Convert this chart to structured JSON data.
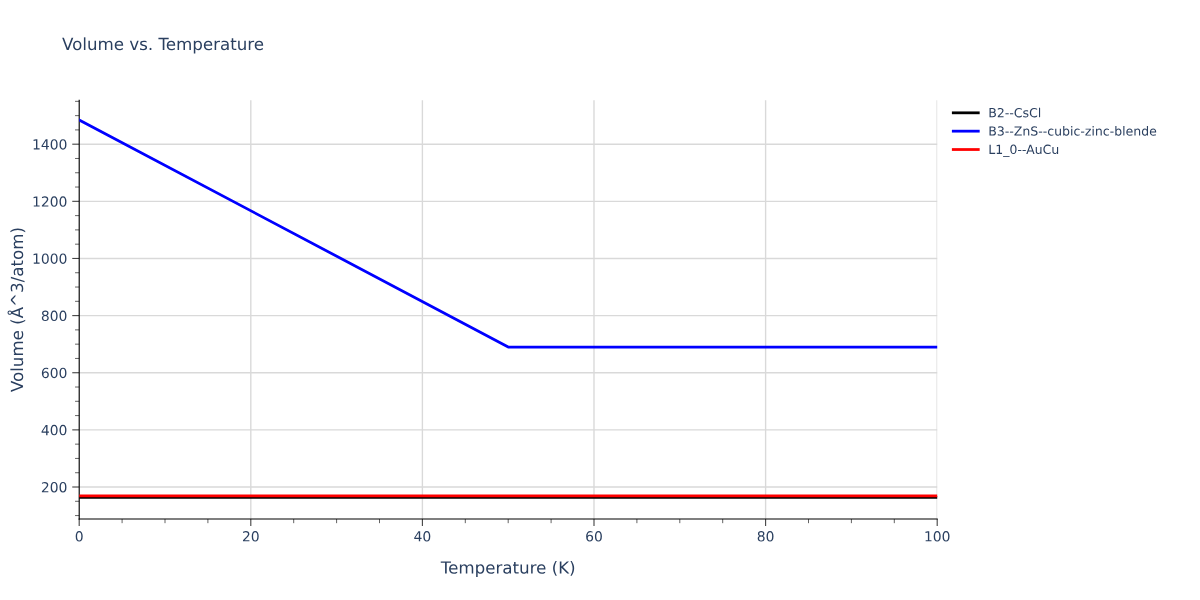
{
  "chart_data": {
    "type": "line",
    "title": "Volume vs. Temperature",
    "xlabel": "Temperature (K)",
    "ylabel": "Volume (Å^3/atom)",
    "series": [
      {
        "name": "B2--CsCl",
        "color": "#000000",
        "x": [
          0,
          100
        ],
        "values": [
          164,
          164
        ]
      },
      {
        "name": "B3--ZnS--cubic-zinc-blende",
        "color": "#0000ff",
        "x": [
          0,
          50,
          100
        ],
        "values": [
          1485,
          690,
          690
        ]
      },
      {
        "name": "L1_0--AuCu",
        "color": "#ff0000",
        "x": [
          0,
          100
        ],
        "values": [
          169,
          169
        ]
      }
    ],
    "xlim": [
      0,
      100
    ],
    "xticks": [
      0,
      20,
      40,
      60,
      80,
      100
    ],
    "ylim": [
      88,
      1554
    ],
    "yticks": [
      200,
      400,
      600,
      800,
      1000,
      1200,
      1400
    ],
    "grid": true,
    "legend": "top right",
    "marker": "none",
    "line_style": "solid"
  }
}
